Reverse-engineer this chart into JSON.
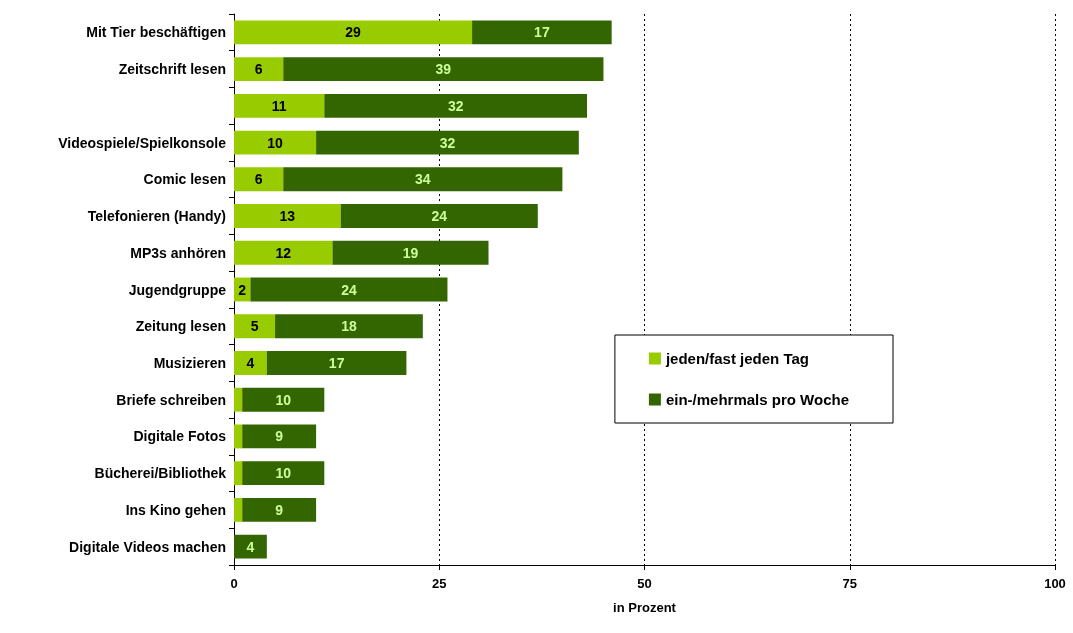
{
  "chart_data": {
    "type": "bar",
    "orientation": "horizontal",
    "stacked": true,
    "categories": [
      "Mit Tier beschäftigen",
      "Zeitschrift lesen",
      null,
      "Videospiele/Spielkonsole",
      "Comic lesen",
      "Telefonieren (Handy)",
      "MP3s anhören",
      "Jugendgruppe",
      "Zeitung lesen",
      "Musizieren",
      "Briefe schreiben",
      "Digitale Fotos",
      "Bücherei/Bibliothek",
      "Ins Kino gehen",
      "Digitale Videos machen"
    ],
    "series": [
      {
        "name": "jeden/fast jeden Tag",
        "color": "#99cc00",
        "values": [
          29,
          6,
          11,
          10,
          6,
          13,
          12,
          2,
          5,
          4,
          1,
          1,
          1,
          1,
          0
        ],
        "value_labels": [
          "29",
          "6",
          "11",
          "10",
          "6",
          "13",
          "12",
          "2",
          "5",
          "4",
          null,
          null,
          null,
          null,
          null
        ]
      },
      {
        "name": "ein-/mehrmals pro Woche",
        "color": "#336600",
        "values": [
          17,
          39,
          32,
          32,
          34,
          24,
          19,
          24,
          18,
          17,
          10,
          9,
          10,
          9,
          4
        ],
        "value_labels": [
          "17",
          "39",
          "32",
          "32",
          "34",
          "24",
          "19",
          "24",
          "18",
          "17",
          "10",
          "9",
          "10",
          "9",
          "4"
        ]
      }
    ],
    "xlim": [
      0,
      100
    ],
    "xticks": [
      0,
      25,
      50,
      75,
      100
    ],
    "xlabel": "in Prozent",
    "grid": "x",
    "legend": "right"
  }
}
